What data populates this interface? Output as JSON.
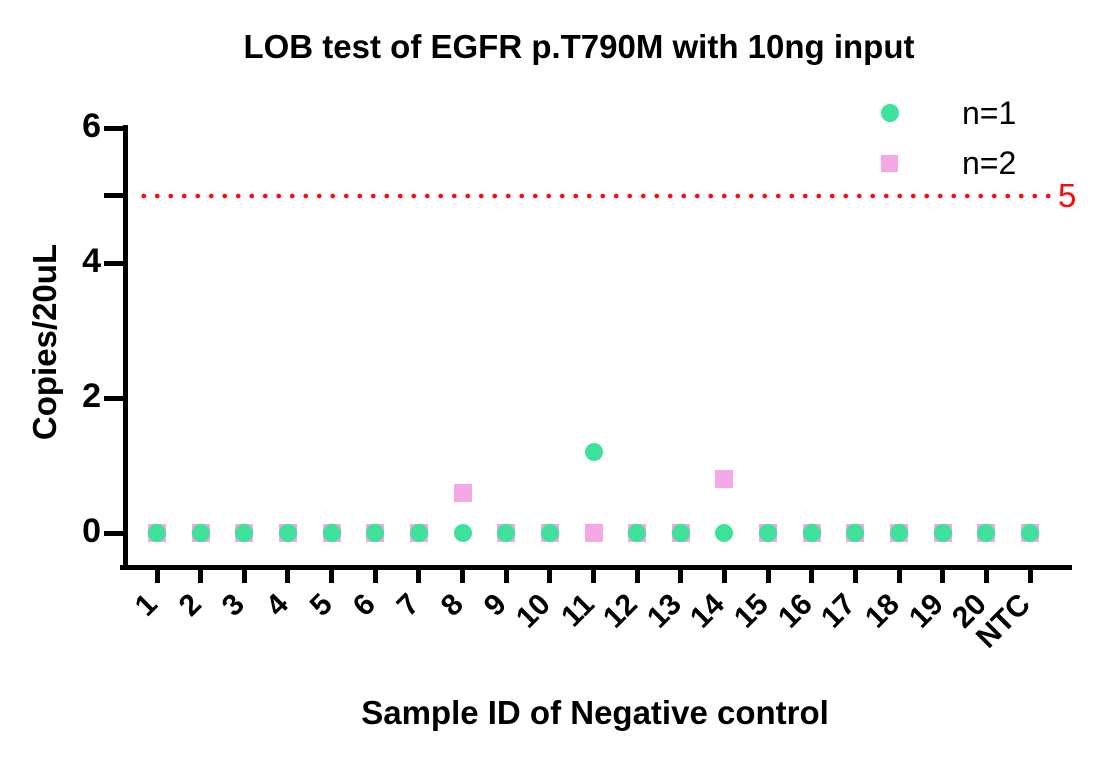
{
  "chart_data": {
    "type": "scatter",
    "title": "LOB test of EGFR p.T790M with 10ng input",
    "xlabel": "Sample ID of Negative control",
    "ylabel": "Copies/20uL",
    "ylim": [
      0,
      6
    ],
    "yticks_labeled": [
      0,
      2,
      4,
      6
    ],
    "yticks_unlabeled": [
      5
    ],
    "categories": [
      "1",
      "2",
      "3",
      "4",
      "5",
      "6",
      "7",
      "8",
      "9",
      "10",
      "11",
      "12",
      "13",
      "14",
      "15",
      "16",
      "17",
      "18",
      "19",
      "20",
      "NTC"
    ],
    "series": [
      {
        "name": "n=1",
        "marker": "circle",
        "color": "#3EE29B",
        "values": [
          0,
          0,
          0,
          0,
          0,
          0,
          0,
          0,
          0,
          0,
          1.2,
          0,
          0,
          0,
          0,
          0,
          0,
          0,
          0,
          0,
          0
        ]
      },
      {
        "name": "n=2",
        "marker": "square",
        "color": "#F4A8E6",
        "values": [
          0,
          0,
          0,
          0,
          0,
          0,
          0,
          0.6,
          0,
          0,
          0,
          0,
          0,
          0.8,
          0,
          0,
          0,
          0,
          0,
          0,
          0
        ]
      }
    ],
    "threshold_line": {
      "value": 5,
      "label": "5",
      "color": "#FA0A0A",
      "style": "dotted"
    },
    "legend_position": "top-right",
    "grid": false,
    "axis_color": "#000000"
  }
}
